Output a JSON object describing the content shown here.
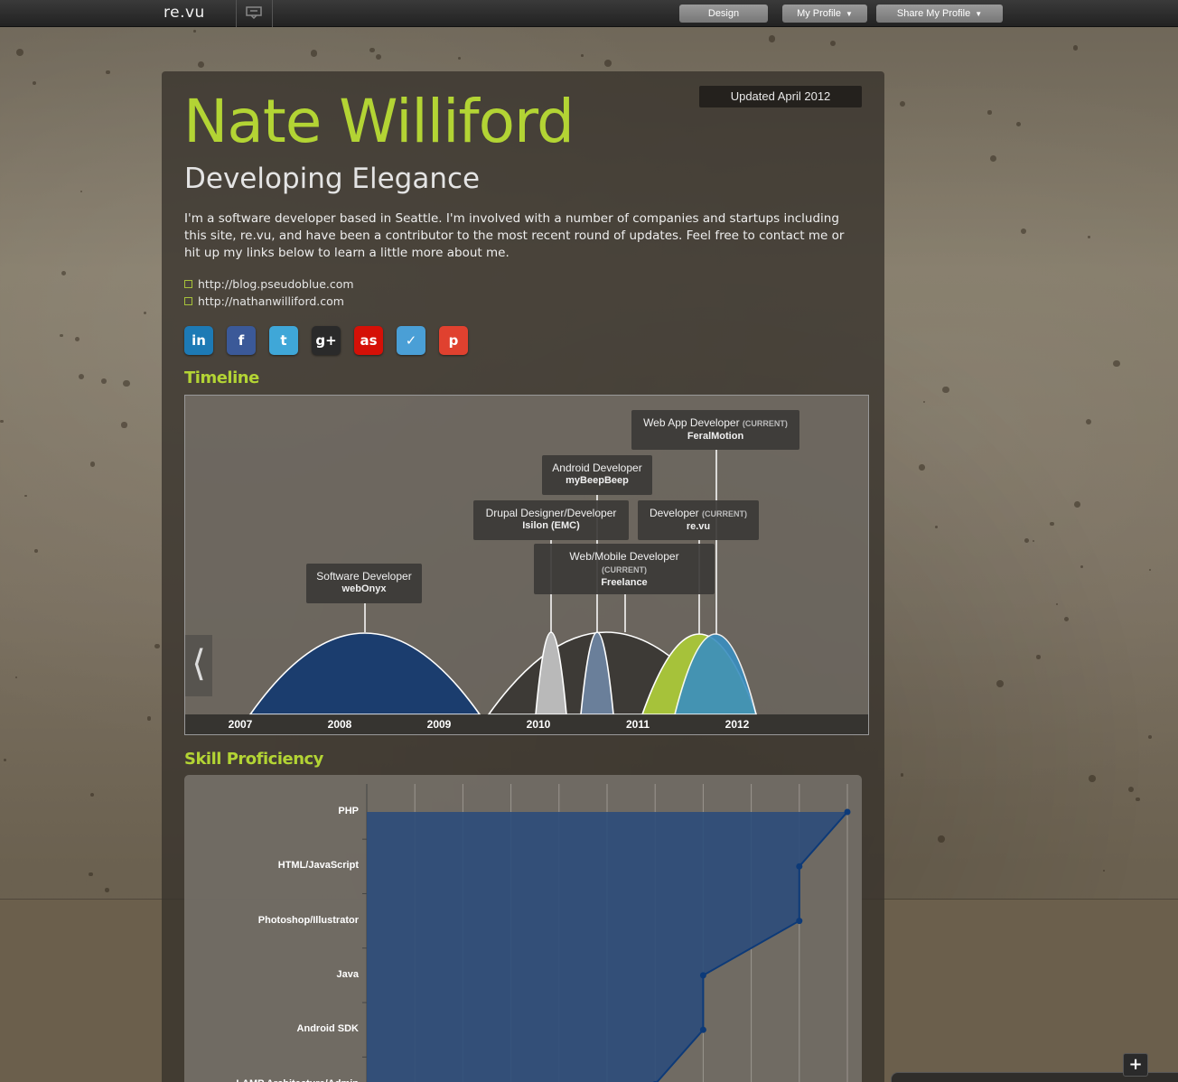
{
  "topbar": {
    "logo": "re.vu",
    "nav": [
      {
        "label": "Design",
        "caret": ""
      },
      {
        "label": "My Profile",
        "caret": "▼"
      },
      {
        "label": "Share My Profile",
        "caret": "▼"
      }
    ]
  },
  "profile": {
    "updated": "Updated April 2012",
    "name": "Nate Williford",
    "tagline": "Developing Elegance",
    "bio": "I'm a software developer based in Seattle. I'm involved with a number of companies and startups including this site, re.vu, and have been a contributor to the most recent round of updates. Feel free to contact me or hit up my links below to learn a little more about me.",
    "links": [
      "http://blog.pseudoblue.com",
      "http://nathanwilliford.com"
    ],
    "social": [
      {
        "icon": "linkedin-icon",
        "glyph": "in",
        "color": "#1d7ab5"
      },
      {
        "icon": "facebook-icon",
        "glyph": "f",
        "color": "#3b5998"
      },
      {
        "icon": "twitter-icon",
        "glyph": "t",
        "color": "#3fa7d8"
      },
      {
        "icon": "google-plus-icon",
        "glyph": "g+",
        "color": "#2a2a2a"
      },
      {
        "icon": "lastfm-icon",
        "glyph": "as",
        "color": "#d51007"
      },
      {
        "icon": "foursquare-icon",
        "glyph": "✓",
        "color": "#4a9fd6"
      },
      {
        "icon": "tumblr-icon",
        "glyph": "p",
        "color": "#e0412f"
      }
    ]
  },
  "timeline": {
    "title": "Timeline",
    "prev_glyph": "⟨",
    "years": [
      "2007",
      "2008",
      "2009",
      "2010",
      "2011",
      "2012"
    ],
    "jobs": [
      {
        "title": "Software Developer",
        "company": "webOnyx",
        "current": ""
      },
      {
        "title": "Drupal Designer/Developer",
        "company": "Isilon (EMC)",
        "current": ""
      },
      {
        "title": "Android Developer",
        "company": "myBeepBeep",
        "current": ""
      },
      {
        "title": "Web/Mobile Developer",
        "company": "Freelance",
        "current": "(CURRENT)"
      },
      {
        "title": "Developer",
        "company": "re.vu",
        "current": "(CURRENT)"
      },
      {
        "title": "Web App Developer",
        "company": "FeralMotion",
        "current": "(CURRENT)"
      }
    ],
    "colors": {
      "webOnyx": "#1b3d6e",
      "isilon": "#b9b9b9",
      "beep": "#6a7f9a",
      "freelance": "#3d3a36",
      "revu": "#a6c23a",
      "feral": "#3a8fc0"
    }
  },
  "skills": {
    "title": "Skill Proficiency",
    "fill_color": "#2c4d7a",
    "line_color": "#0d3a78"
  },
  "chart_data": {
    "type": "area",
    "title": "Skill Proficiency",
    "categories": [
      "PHP",
      "HTML/JavaScript",
      "Photoshop/Illustrator",
      "Java",
      "Android SDK",
      "LAMP Architecture/Admin"
    ],
    "values": [
      10,
      9,
      9,
      7,
      7,
      6
    ],
    "xlim": [
      0,
      10
    ],
    "grid": true
  },
  "ui": {
    "plus": "+"
  }
}
